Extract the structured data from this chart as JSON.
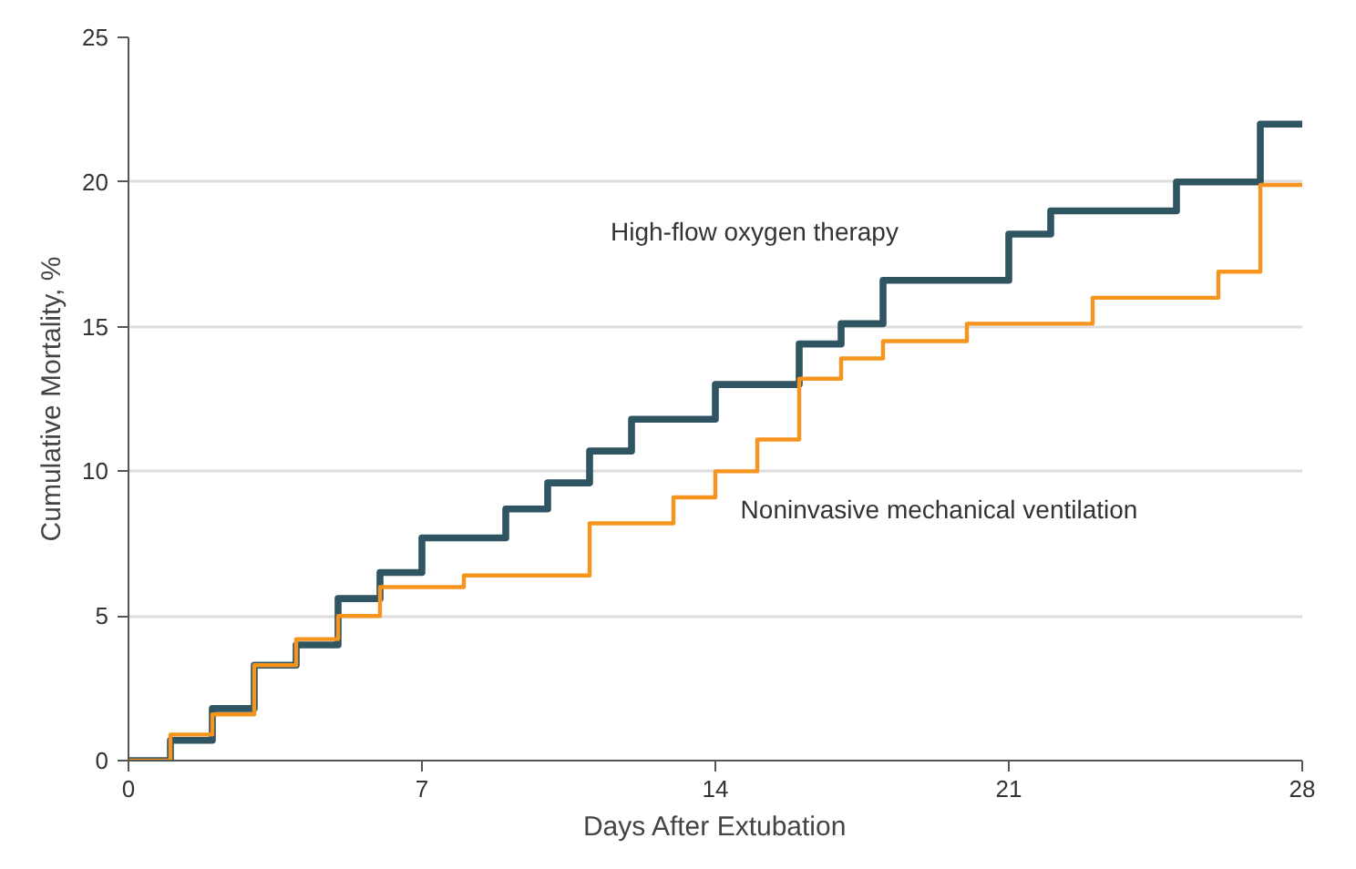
{
  "chart_data": {
    "type": "step",
    "xlabel": "Days After Extubation",
    "ylabel": "Cumulative Mortality, %",
    "xlim": [
      0,
      28
    ],
    "ylim": [
      0,
      25
    ],
    "xticks": [
      0,
      7,
      14,
      21,
      28
    ],
    "yticks": [
      0,
      5,
      10,
      15,
      20,
      25
    ],
    "grid": "y",
    "marker": "none",
    "line_style": "solid",
    "series": [
      {
        "name": "High-flow oxygen therapy",
        "color": "#2f5562",
        "x": [
          0,
          1,
          2,
          3,
          4,
          5,
          6,
          7,
          9,
          10,
          11,
          12,
          14,
          16,
          17,
          18,
          21,
          22,
          25,
          27,
          28
        ],
        "values": [
          0,
          0.7,
          1.8,
          3.3,
          4.0,
          5.6,
          6.5,
          7.7,
          8.7,
          9.6,
          10.7,
          11.8,
          13.0,
          14.4,
          15.1,
          16.6,
          18.2,
          19.0,
          20.0,
          22.0,
          22.0
        ]
      },
      {
        "name": "Noninvasive mechanical ventilation",
        "color": "#f7941d",
        "x": [
          0,
          1,
          2,
          3,
          4,
          5,
          6,
          8,
          11,
          13,
          14,
          15,
          16,
          17,
          18,
          20,
          23,
          26,
          27,
          28
        ],
        "values": [
          0,
          0.9,
          1.6,
          3.3,
          4.2,
          5.0,
          6.0,
          6.4,
          8.2,
          9.1,
          10.0,
          11.1,
          13.2,
          13.9,
          14.5,
          15.1,
          16.0,
          16.9,
          19.9,
          19.9
        ]
      }
    ]
  }
}
